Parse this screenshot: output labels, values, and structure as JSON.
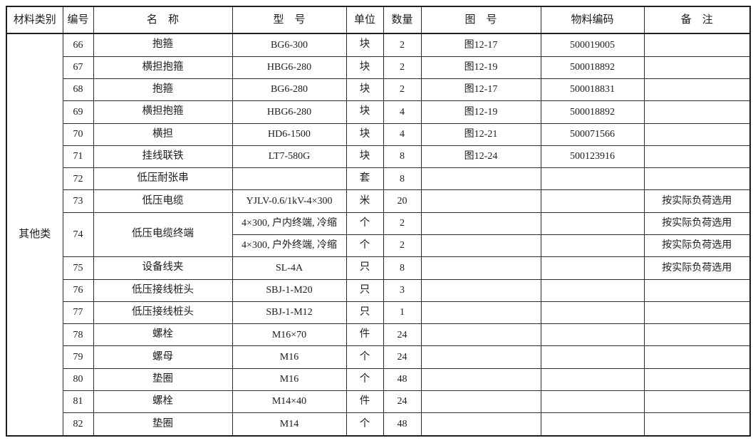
{
  "table": {
    "category": "其他类",
    "headers": [
      {
        "key": "category",
        "label": "材料类别"
      },
      {
        "key": "no",
        "label": "编号"
      },
      {
        "key": "name",
        "label": "名　称"
      },
      {
        "key": "model",
        "label": "型　号"
      },
      {
        "key": "unit",
        "label": "单位"
      },
      {
        "key": "qty",
        "label": "数量"
      },
      {
        "key": "fig",
        "label": "图　号"
      },
      {
        "key": "code",
        "label": "物料编码"
      },
      {
        "key": "note",
        "label": "备　注"
      }
    ],
    "rows": [
      {
        "no": "66",
        "name": "抱箍",
        "model": "BG6-300",
        "unit": "块",
        "qty": "2",
        "fig": "图12-17",
        "code": "500019005",
        "note": ""
      },
      {
        "no": "67",
        "name": "横担抱箍",
        "model": "HBG6-280",
        "unit": "块",
        "qty": "2",
        "fig": "图12-19",
        "code": "500018892",
        "note": ""
      },
      {
        "no": "68",
        "name": "抱箍",
        "model": "BG6-280",
        "unit": "块",
        "qty": "2",
        "fig": "图12-17",
        "code": "500018831",
        "note": ""
      },
      {
        "no": "69",
        "name": "横担抱箍",
        "model": "HBG6-280",
        "unit": "块",
        "qty": "4",
        "fig": "图12-19",
        "code": "500018892",
        "note": ""
      },
      {
        "no": "70",
        "name": "横担",
        "model": "HD6-1500",
        "unit": "块",
        "qty": "4",
        "fig": "图12-21",
        "code": "500071566",
        "note": ""
      },
      {
        "no": "71",
        "name": "挂线联铁",
        "model": "LT7-580G",
        "unit": "块",
        "qty": "8",
        "fig": "图12-24",
        "code": "500123916",
        "note": ""
      },
      {
        "no": "72",
        "name": "低压耐张串",
        "model": "",
        "unit": "套",
        "qty": "8",
        "fig": "",
        "code": "",
        "note": ""
      },
      {
        "no": "73",
        "name": "低压电缆",
        "model": "YJLV-0.6/1kV-4×300",
        "unit": "米",
        "qty": "20",
        "fig": "",
        "code": "",
        "note": "按实际负荷选用"
      },
      {
        "no": "74",
        "name": "低压电缆终端",
        "name_rowspan": 2,
        "model": "4×300, 户内终端, 冷缩",
        "unit": "个",
        "qty": "2",
        "fig": "",
        "code": "",
        "note": "按实际负荷选用"
      },
      {
        "merged_continuation": true,
        "model": "4×300, 户外终端, 冷缩",
        "unit": "个",
        "qty": "2",
        "fig": "",
        "code": "",
        "note": "按实际负荷选用"
      },
      {
        "no": "75",
        "name": "设备线夹",
        "model": "SL-4A",
        "unit": "只",
        "qty": "8",
        "fig": "",
        "code": "",
        "note": "按实际负荷选用"
      },
      {
        "no": "76",
        "name": "低压接线桩头",
        "model": "SBJ-1-M20",
        "unit": "只",
        "qty": "3",
        "fig": "",
        "code": "",
        "note": ""
      },
      {
        "no": "77",
        "name": "低压接线桩头",
        "model": "SBJ-1-M12",
        "unit": "只",
        "qty": "1",
        "fig": "",
        "code": "",
        "note": ""
      },
      {
        "no": "78",
        "name": "螺栓",
        "model": "M16×70",
        "unit": "件",
        "qty": "24",
        "fig": "",
        "code": "",
        "note": ""
      },
      {
        "no": "79",
        "name": "螺母",
        "model": "M16",
        "unit": "个",
        "qty": "24",
        "fig": "",
        "code": "",
        "note": ""
      },
      {
        "no": "80",
        "name": "垫圈",
        "model": "M16",
        "unit": "个",
        "qty": "48",
        "fig": "",
        "code": "",
        "note": ""
      },
      {
        "no": "81",
        "name": "螺栓",
        "model": "M14×40",
        "unit": "件",
        "qty": "24",
        "fig": "",
        "code": "",
        "note": ""
      },
      {
        "no": "82",
        "name": "垫圈",
        "model": "M14",
        "unit": "个",
        "qty": "48",
        "fig": "",
        "code": "",
        "note": ""
      }
    ]
  },
  "colors": {
    "border": "#2d2d2d",
    "outer_border": "#1e1e1e",
    "text": "#1c1c1c",
    "background": "#ffffff"
  }
}
